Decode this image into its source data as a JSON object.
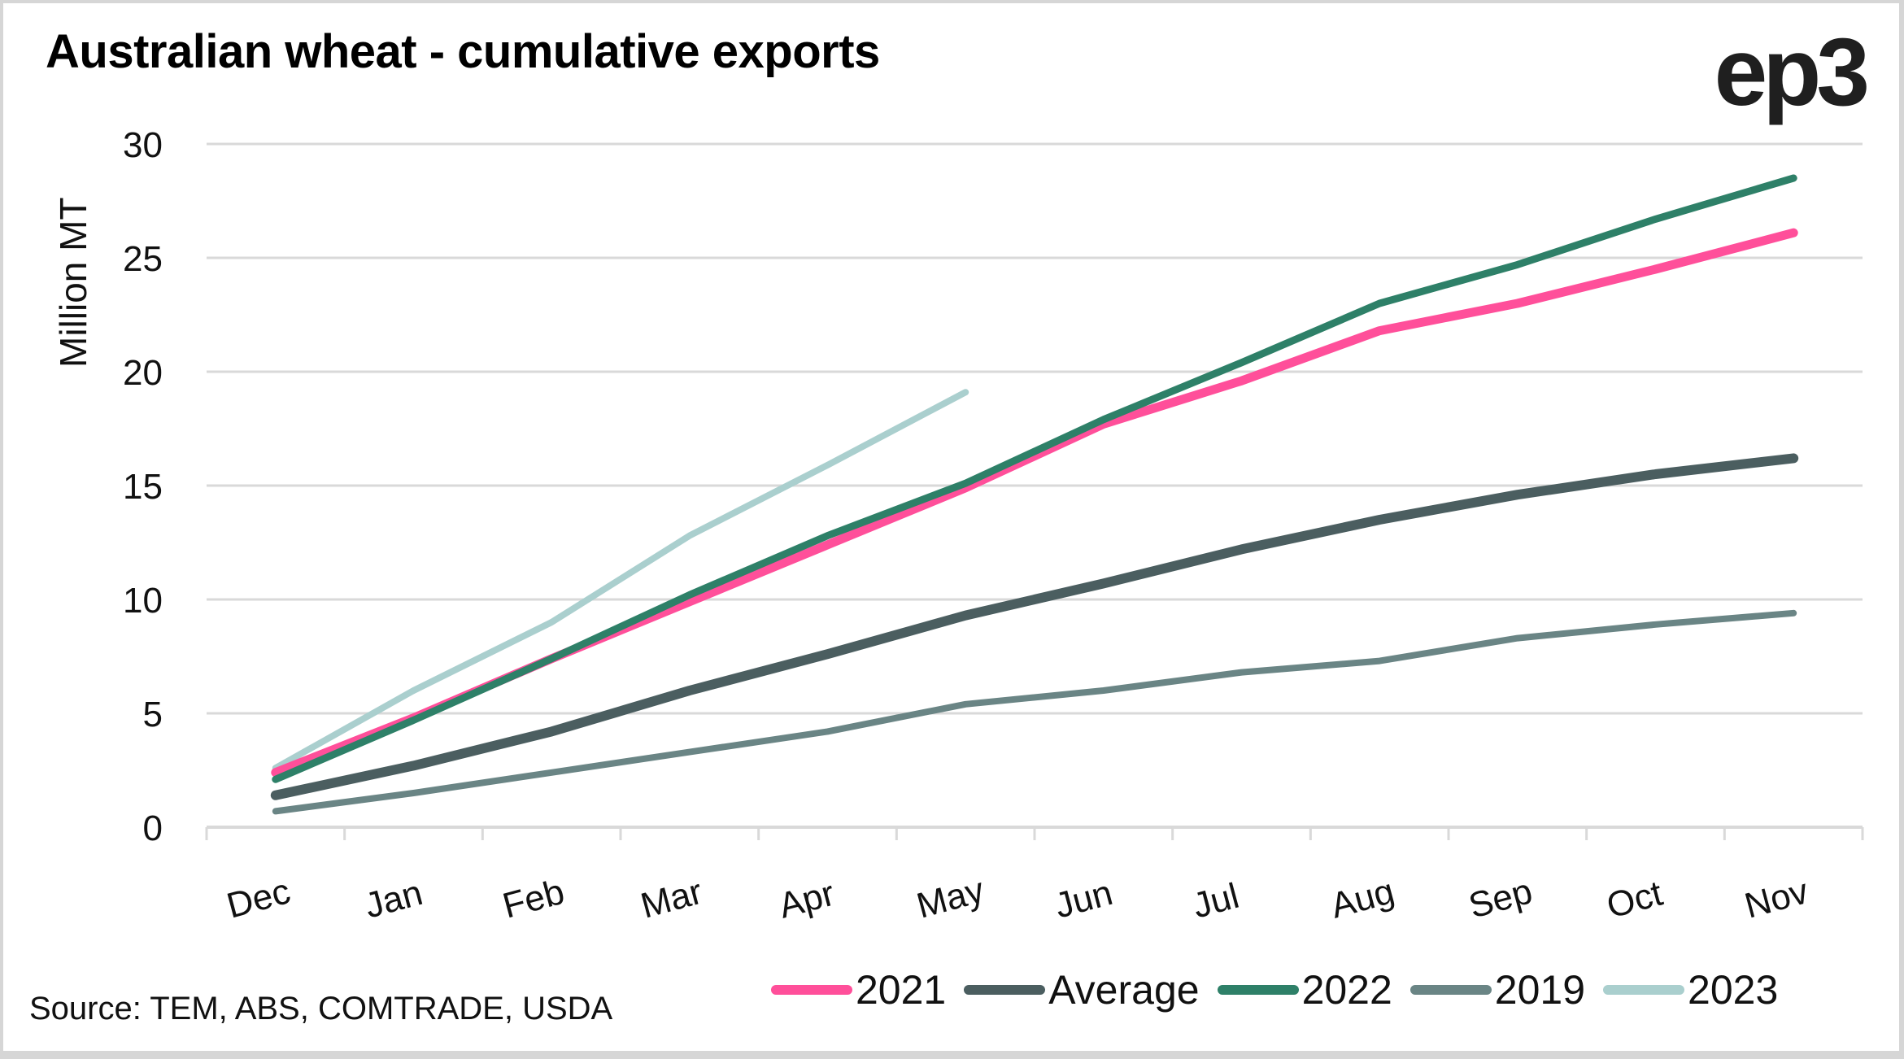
{
  "title": "Australian wheat - cumulative exports",
  "logo": "ep3",
  "source": "Source: TEM, ABS, COMTRADE, USDA",
  "chart_data": {
    "type": "line",
    "title": "Australian wheat - cumulative exports",
    "xlabel": "",
    "ylabel": "Million MT",
    "ylim": [
      0,
      30
    ],
    "yticks": [
      0,
      5,
      10,
      15,
      20,
      25,
      30
    ],
    "grid": true,
    "legend_position": "bottom-right",
    "categories": [
      "Dec",
      "Jan",
      "Feb",
      "Mar",
      "Apr",
      "May",
      "Jun",
      "Jul",
      "Aug",
      "Sep",
      "Oct",
      "Nov"
    ],
    "series": [
      {
        "name": "2021",
        "color": "#FF4F9A",
        "values": [
          2.4,
          4.8,
          7.4,
          9.9,
          12.4,
          14.9,
          17.7,
          19.6,
          21.8,
          23.0,
          24.5,
          26.1
        ]
      },
      {
        "name": "Average",
        "color": "#4B5E60",
        "values": [
          1.4,
          2.7,
          4.2,
          6.0,
          7.6,
          9.3,
          10.7,
          12.2,
          13.5,
          14.6,
          15.5,
          16.2
        ]
      },
      {
        "name": "2022",
        "color": "#2E8068",
        "values": [
          2.1,
          4.7,
          7.4,
          10.2,
          12.8,
          15.1,
          17.9,
          20.4,
          23.0,
          24.7,
          26.7,
          28.5
        ]
      },
      {
        "name": "2019",
        "color": "#6A8585",
        "values": [
          0.7,
          1.5,
          2.4,
          3.3,
          4.2,
          5.4,
          6.0,
          6.8,
          7.3,
          8.3,
          8.9,
          9.4
        ]
      },
      {
        "name": "2023",
        "color": "#AACFCE",
        "values": [
          2.6,
          6.0,
          9.0,
          12.8,
          15.9,
          19.1,
          null,
          null,
          null,
          null,
          null,
          null
        ]
      }
    ]
  }
}
